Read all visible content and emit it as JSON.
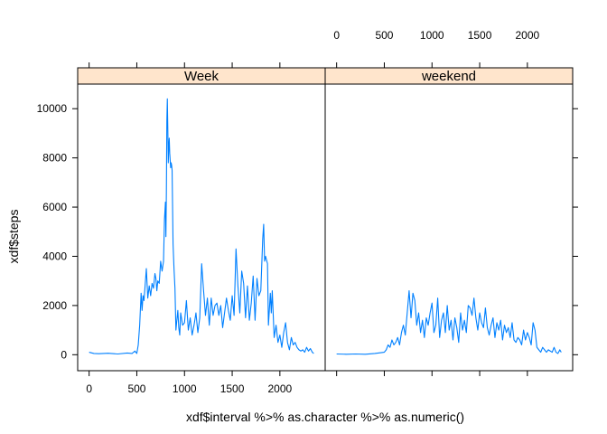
{
  "chart_data": {
    "type": "line",
    "xlabel": "xdf$interval %>% as.character %>% as.numeric()",
    "ylabel": "xdf$steps",
    "xlim": [
      -120,
      2475
    ],
    "ylim": [
      -650,
      11000
    ],
    "x_ticks": [
      0,
      500,
      1000,
      1500,
      2000
    ],
    "y_ticks": [
      0,
      2000,
      4000,
      6000,
      8000,
      10000
    ],
    "line_color": "#0080ff",
    "strip_color": "#ffe5cc",
    "panels": [
      {
        "name": "Week",
        "x": [
          0,
          50,
          100,
          200,
          300,
          400,
          450,
          480,
          500,
          515,
          530,
          545,
          555,
          565,
          575,
          585,
          600,
          615,
          630,
          645,
          660,
          675,
          690,
          700,
          710,
          720,
          735,
          750,
          765,
          780,
          790,
          800,
          805,
          810,
          815,
          820,
          825,
          830,
          835,
          840,
          845,
          850,
          855,
          860,
          865,
          870,
          880,
          890,
          900,
          910,
          920,
          930,
          940,
          950,
          960,
          980,
          1000,
          1020,
          1040,
          1060,
          1080,
          1100,
          1120,
          1140,
          1160,
          1180,
          1200,
          1220,
          1240,
          1260,
          1280,
          1300,
          1320,
          1340,
          1360,
          1380,
          1400,
          1420,
          1440,
          1460,
          1480,
          1500,
          1520,
          1540,
          1560,
          1580,
          1600,
          1620,
          1640,
          1660,
          1680,
          1700,
          1720,
          1740,
          1760,
          1780,
          1800,
          1820,
          1830,
          1840,
          1850,
          1870,
          1880,
          1900,
          1910,
          1920,
          1940,
          1960,
          1980,
          2000,
          2020,
          2040,
          2060,
          2080,
          2100,
          2120,
          2140,
          2160,
          2180,
          2200,
          2220,
          2240,
          2260,
          2280,
          2300,
          2320,
          2340,
          2355
        ],
        "y": [
          100,
          50,
          40,
          60,
          30,
          70,
          50,
          150,
          50,
          400,
          1200,
          2500,
          1800,
          2400,
          2200,
          2700,
          3500,
          2300,
          2800,
          2400,
          2900,
          2700,
          3300,
          3100,
          2600,
          3000,
          2900,
          3800,
          3400,
          3800,
          5500,
          6200,
          4800,
          6600,
          9500,
          10400,
          9200,
          7800,
          8500,
          8800,
          8200,
          7900,
          7600,
          7800,
          7700,
          7500,
          4500,
          3500,
          2700,
          1000,
          1400,
          1800,
          1100,
          800,
          1700,
          1200,
          1300,
          2200,
          1000,
          1500,
          800,
          1200,
          1700,
          900,
          1500,
          3700,
          2600,
          1600,
          2300,
          1200,
          2300,
          1600,
          2000,
          2100,
          1600,
          2000,
          1100,
          1700,
          2300,
          1800,
          1400,
          2400,
          1600,
          4300,
          2800,
          1700,
          3400,
          2900,
          1500,
          2800,
          1400,
          2100,
          3200,
          1400,
          3100,
          2400,
          2600,
          4700,
          5300,
          3800,
          4000,
          3700,
          1200,
          2500,
          1700,
          2600,
          700,
          1200,
          500,
          800,
          300,
          900,
          1300,
          500,
          200,
          700,
          400,
          500,
          300,
          200,
          150,
          200,
          100,
          300,
          150,
          250,
          100,
          50
        ]
      },
      {
        "name": "weekend",
        "x": [
          0,
          100,
          200,
          300,
          400,
          500,
          520,
          540,
          560,
          580,
          600,
          620,
          640,
          660,
          680,
          700,
          720,
          740,
          760,
          780,
          800,
          820,
          840,
          860,
          880,
          900,
          920,
          940,
          960,
          980,
          1000,
          1020,
          1040,
          1060,
          1080,
          1100,
          1120,
          1140,
          1160,
          1180,
          1200,
          1220,
          1240,
          1260,
          1280,
          1300,
          1320,
          1340,
          1360,
          1380,
          1400,
          1420,
          1440,
          1460,
          1480,
          1500,
          1520,
          1540,
          1560,
          1580,
          1600,
          1620,
          1640,
          1660,
          1680,
          1700,
          1720,
          1740,
          1760,
          1780,
          1800,
          1820,
          1840,
          1860,
          1880,
          1900,
          1920,
          1940,
          1960,
          1980,
          2000,
          2020,
          2040,
          2060,
          2080,
          2100,
          2120,
          2140,
          2160,
          2180,
          2200,
          2220,
          2240,
          2260,
          2280,
          2300,
          2320,
          2340,
          2355
        ],
        "y": [
          30,
          20,
          30,
          20,
          50,
          100,
          200,
          400,
          300,
          600,
          400,
          500,
          700,
          400,
          900,
          1200,
          800,
          1700,
          2600,
          1500,
          2500,
          2200,
          1200,
          1700,
          900,
          1400,
          700,
          1500,
          1200,
          1700,
          2100,
          900,
          1200,
          2300,
          700,
          1400,
          1700,
          900,
          2000,
          1000,
          1400,
          600,
          1500,
          1100,
          500,
          1700,
          1000,
          1400,
          900,
          2000,
          1900,
          1600,
          2300,
          1500,
          1000,
          1700,
          1300,
          1100,
          1900,
          1100,
          800,
          1200,
          1500,
          700,
          1300,
          1000,
          1400,
          600,
          1200,
          900,
          1100,
          700,
          1300,
          600,
          500,
          700,
          600,
          400,
          1000,
          600,
          900,
          700,
          400,
          1300,
          1000,
          300,
          200,
          100,
          300,
          200,
          100,
          200,
          150,
          100,
          300,
          100,
          50,
          200,
          100
        ]
      }
    ]
  }
}
